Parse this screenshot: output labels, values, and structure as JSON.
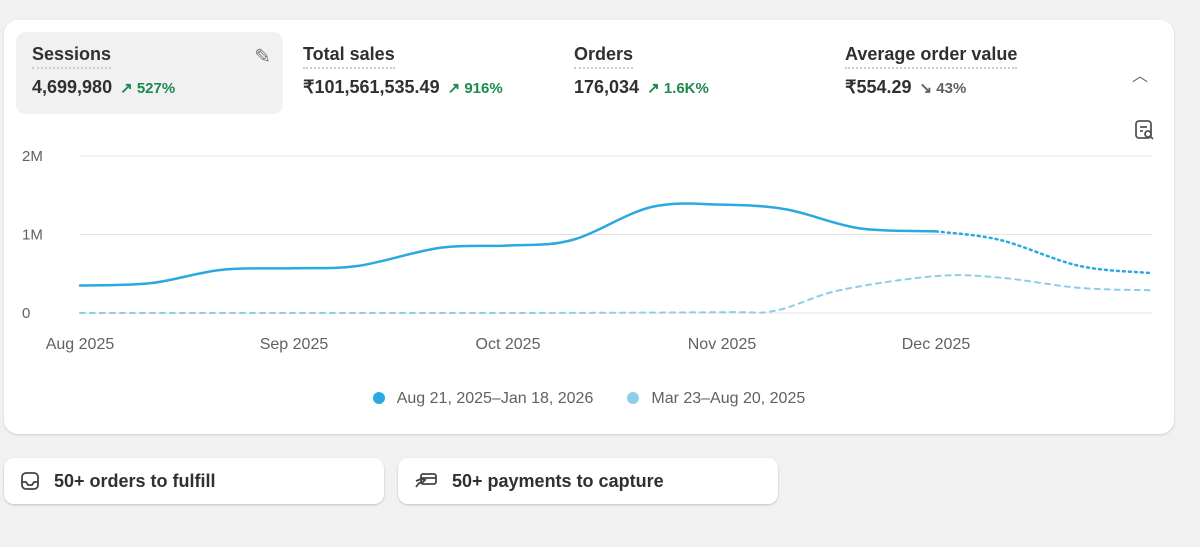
{
  "metrics": [
    {
      "label": "Sessions",
      "value": "4,699,980",
      "delta": "527%",
      "direction": "up"
    },
    {
      "label": "Total sales",
      "value": "₹101,561,535.49",
      "delta": "916%",
      "direction": "up"
    },
    {
      "label": "Orders",
      "value": "176,034",
      "delta": "1.6K%",
      "direction": "up"
    },
    {
      "label": "Average order value",
      "value": "₹554.29",
      "delta": "43%",
      "direction": "down"
    }
  ],
  "colors": {
    "current": "#29a9e0",
    "previous": "#8ecdea",
    "up": "#1a8a4f",
    "down": "#616161"
  },
  "chart_data": {
    "type": "line",
    "ylabel": "Sessions",
    "y_ticks": [
      "2M",
      "1M",
      "0"
    ],
    "ylim": [
      0,
      2
    ],
    "x_ticks": [
      "Aug 2025",
      "Sep 2025",
      "Oct 2025",
      "Nov 2025",
      "Dec 2025"
    ],
    "x_unit": "months since Aug 2025",
    "series": [
      {
        "name": "Aug 21, 2025–Jan 18, 2026",
        "style": "solid",
        "points": [
          [
            0,
            0.35
          ],
          [
            0.33,
            0.38
          ],
          [
            0.66,
            0.55
          ],
          [
            1,
            0.57
          ],
          [
            1.3,
            0.6
          ],
          [
            1.68,
            0.83
          ],
          [
            2,
            0.86
          ],
          [
            2.3,
            0.93
          ],
          [
            2.67,
            1.35
          ],
          [
            3,
            1.38
          ],
          [
            3.3,
            1.32
          ],
          [
            3.64,
            1.08
          ],
          [
            4,
            1.04
          ]
        ]
      },
      {
        "name": "Aug 21, 2025–Jan 18, 2026 (incomplete)",
        "style": "dotted",
        "points": [
          [
            4,
            1.04
          ],
          [
            4.3,
            0.93
          ],
          [
            4.67,
            0.6
          ],
          [
            5,
            0.51
          ]
        ]
      },
      {
        "name": "Mar 23–Aug 20, 2025",
        "style": "dashed",
        "points": [
          [
            0,
            0
          ],
          [
            1,
            0
          ],
          [
            2,
            0
          ],
          [
            3,
            0.01
          ],
          [
            3.25,
            0.03
          ],
          [
            3.55,
            0.29
          ],
          [
            4,
            0.47
          ],
          [
            4.3,
            0.45
          ],
          [
            4.67,
            0.32
          ],
          [
            5,
            0.29
          ]
        ]
      }
    ],
    "legend": [
      "Aug 21, 2025–Jan 18, 2026",
      "Mar 23–Aug 20, 2025"
    ],
    "legend_position": "bottom"
  },
  "actions": [
    {
      "label": "50+ orders to fulfill",
      "icon": "inbox-icon"
    },
    {
      "label": "50+ payments to capture",
      "icon": "payment-icon"
    }
  ]
}
